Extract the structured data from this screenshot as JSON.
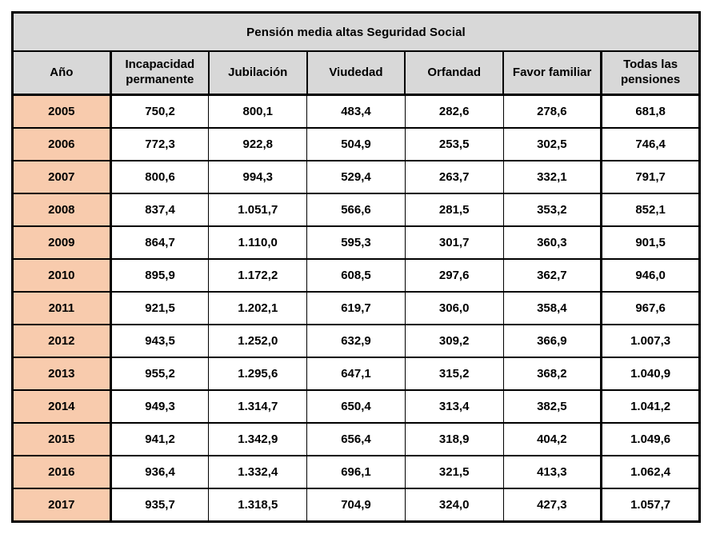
{
  "chart_data": {
    "type": "table",
    "title": "Pensión media altas Seguridad Social",
    "columns": [
      "Año",
      "Incapacidad permanente",
      "Jubilación",
      "Viudedad",
      "Orfandad",
      "Favor familiar",
      "Todas las pensiones"
    ],
    "rows": [
      {
        "year": "2005",
        "values": [
          "750,2",
          "800,1",
          "483,4",
          "282,6",
          "278,6",
          "681,8"
        ],
        "red_value_indices": []
      },
      {
        "year": "2006",
        "values": [
          "772,3",
          "922,8",
          "504,9",
          "253,5",
          "302,5",
          "746,4"
        ],
        "red_value_indices": []
      },
      {
        "year": "2007",
        "values": [
          "800,6",
          "994,3",
          "529,4",
          "263,7",
          "332,1",
          "791,7"
        ],
        "red_value_indices": []
      },
      {
        "year": "2008",
        "values": [
          "837,4",
          "1.051,7",
          "566,6",
          "281,5",
          "353,2",
          "852,1"
        ],
        "red_value_indices": []
      },
      {
        "year": "2009",
        "values": [
          "864,7",
          "1.110,0",
          "595,3",
          "301,7",
          "360,3",
          "901,5"
        ],
        "red_value_indices": []
      },
      {
        "year": "2010",
        "values": [
          "895,9",
          "1.172,2",
          "608,5",
          "297,6",
          "362,7",
          "946,0"
        ],
        "red_value_indices": []
      },
      {
        "year": "2011",
        "values": [
          "921,5",
          "1.202,1",
          "619,7",
          "306,0",
          "358,4",
          "967,6"
        ],
        "red_value_indices": []
      },
      {
        "year": "2012",
        "values": [
          "943,5",
          "1.252,0",
          "632,9",
          "309,2",
          "366,9",
          "1.007,3"
        ],
        "red_value_indices": []
      },
      {
        "year": "2013",
        "values": [
          "955,2",
          "1.295,6",
          "647,1",
          "315,2",
          "368,2",
          "1.040,9"
        ],
        "red_value_indices": []
      },
      {
        "year": "2014",
        "values": [
          "949,3",
          "1.314,7",
          "650,4",
          "313,4",
          "382,5",
          "1.041,2"
        ],
        "red_value_indices": []
      },
      {
        "year": "2015",
        "values": [
          "941,2",
          "1.342,9",
          "656,4",
          "318,9",
          "404,2",
          "1.049,6"
        ],
        "red_value_indices": [
          1
        ]
      },
      {
        "year": "2016",
        "values": [
          "936,4",
          "1.332,4",
          "696,1",
          "321,5",
          "413,3",
          "1.062,4"
        ],
        "red_value_indices": [
          1,
          5
        ]
      },
      {
        "year": "2017",
        "values": [
          "935,7",
          "1.318,5",
          "704,9",
          "324,0",
          "427,3",
          "1.057,7"
        ],
        "red_value_indices": [
          1,
          5
        ]
      }
    ]
  },
  "colors": {
    "border": "#000000",
    "header_bg": "#D8D8D8",
    "year_bg": "#F8CBAD",
    "red_text": "#FF0000",
    "cell_bg": "#FFFFFF"
  }
}
